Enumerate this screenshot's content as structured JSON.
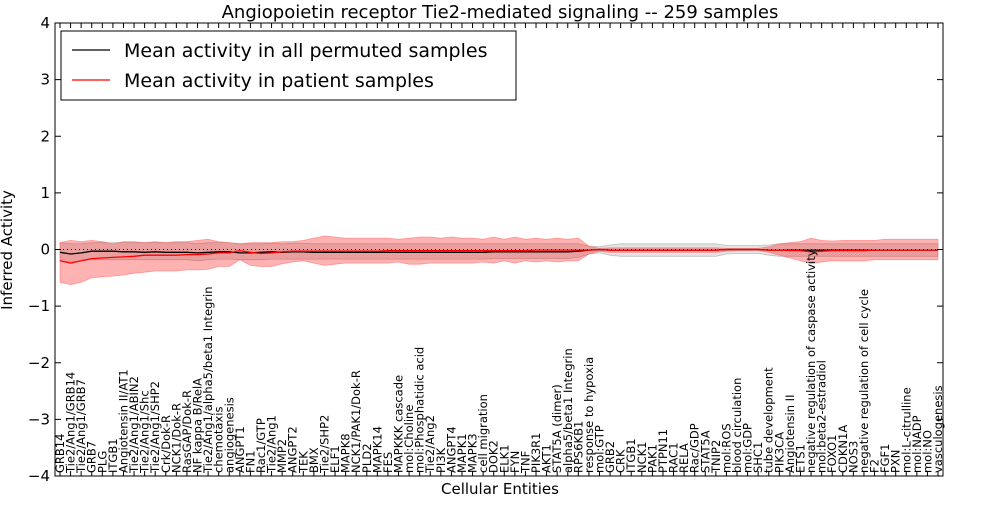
{
  "chart_data": {
    "type": "line",
    "title": "Angiopoietin receptor Tie2-mediated signaling -- 259 samples",
    "xlabel": "Cellular Entities",
    "ylabel": "Inferred Activity",
    "ylim": [
      -4,
      4
    ],
    "yticks": [
      -4,
      -3,
      -2,
      -1,
      0,
      1,
      2,
      3,
      4
    ],
    "ytick_labels": [
      "−4",
      "−3",
      "−2",
      "−1",
      "0",
      "1",
      "2",
      "3",
      "4"
    ],
    "legend_position": "top-left",
    "reference_line": 0,
    "categories": [
      "GRB14",
      "Tie2/Ang1/GRB14",
      "Tie2/Ang1/GRB7",
      "GRB7",
      "PLG",
      "ITGB1",
      "Angiotensin II/AT1",
      "Tie2/Ang1/ABIN2",
      "Tie2/Ang1/Shc",
      "Tie2/Ang1/SHP2",
      "Crk/Dok-R",
      "NCK1/Dok-R",
      "RasGAP/Dok-R",
      "NF kappa B/RelA",
      "Tie2/Ang1/alpha5/beta1 Integrin",
      "chemotaxis",
      "angiogenesis",
      "ANGPT1",
      "FN1",
      "Rac1/GTP",
      "Tie2/Ang1",
      "MMP2",
      "ANGPT2",
      "TEK",
      "BMX",
      "Tie2/SHP2",
      "ELF1",
      "MAPK8",
      "NCK1/PAK1/Dok-R",
      "PLD2",
      "MAPK14",
      "FES",
      "MAPKKK cascade",
      "mol:Choline",
      "mol:Phosphatidic acid",
      "Tie2/Ang2",
      "PI3K",
      "ANGPT4",
      "MAPK1",
      "MAPK3",
      "cell migration",
      "DOK2",
      "ELK1",
      "FYN",
      "TNF",
      "PIK3R1",
      "AKT1",
      "STAT5A (dimer)",
      "alpha5/beta1 Integrin",
      "RPS6KB1",
      "response to hypoxia",
      "mol:GTP",
      "GRB2",
      "CRK",
      "ITGB1",
      "NCK1",
      "PAK1",
      "PTPN11",
      "RAC1",
      "RELA",
      "Rac/GDP",
      "STAT5A",
      "TNIP2",
      "mol:ROS",
      "blood circulation",
      "mol:GDP",
      "SHC1",
      "tube development",
      "PIK3CA",
      "Angiotensin II",
      "ETS1",
      "negative regulation of caspase activity",
      "mol:beta2-estradiol",
      "FOXO1",
      "CDKN1A",
      "NOS3",
      "negative regulation of cell cycle",
      "F2",
      "FGF1",
      "PXN",
      "mol:L-citrulline",
      "mol:NADP",
      "mol:NO",
      "vasculogenesis"
    ],
    "series": [
      {
        "name": "Mean activity in all permuted samples",
        "color": "#000000",
        "values": [
          -0.05,
          -0.08,
          -0.06,
          -0.03,
          -0.03,
          -0.03,
          -0.04,
          -0.04,
          -0.05,
          -0.04,
          -0.05,
          -0.05,
          -0.05,
          -0.06,
          -0.05,
          -0.04,
          -0.04,
          -0.06,
          -0.06,
          -0.05,
          -0.04,
          -0.05,
          -0.04,
          -0.04,
          -0.05,
          -0.05,
          -0.05,
          -0.05,
          -0.05,
          -0.05,
          -0.05,
          -0.05,
          -0.05,
          -0.05,
          -0.05,
          -0.05,
          -0.05,
          -0.05,
          -0.05,
          -0.05,
          -0.05,
          -0.04,
          -0.04,
          -0.04,
          -0.04,
          -0.04,
          -0.04,
          -0.04,
          -0.04,
          -0.03,
          -0.01,
          0.0,
          -0.01,
          -0.01,
          -0.01,
          -0.01,
          -0.01,
          -0.01,
          -0.01,
          -0.01,
          -0.01,
          -0.01,
          -0.01,
          0.0,
          0.0,
          0.0,
          0.0,
          -0.01,
          -0.01,
          -0.01,
          -0.01,
          -0.01,
          -0.01,
          -0.01,
          -0.01,
          -0.01,
          -0.01,
          -0.01,
          -0.01,
          -0.01,
          -0.01,
          -0.01,
          -0.01,
          -0.01
        ],
        "band_lower": [
          -0.2,
          -0.22,
          -0.2,
          -0.18,
          -0.18,
          -0.18,
          -0.18,
          -0.18,
          -0.18,
          -0.18,
          -0.18,
          -0.18,
          -0.18,
          -0.2,
          -0.18,
          -0.17,
          -0.17,
          -0.18,
          -0.18,
          -0.18,
          -0.17,
          -0.17,
          -0.17,
          -0.17,
          -0.17,
          -0.17,
          -0.17,
          -0.17,
          -0.17,
          -0.17,
          -0.17,
          -0.17,
          -0.17,
          -0.17,
          -0.17,
          -0.17,
          -0.17,
          -0.17,
          -0.17,
          -0.17,
          -0.17,
          -0.16,
          -0.16,
          -0.16,
          -0.16,
          -0.16,
          -0.16,
          -0.16,
          -0.16,
          -0.14,
          -0.08,
          -0.06,
          -0.1,
          -0.12,
          -0.12,
          -0.12,
          -0.12,
          -0.12,
          -0.12,
          -0.12,
          -0.12,
          -0.12,
          -0.12,
          -0.08,
          -0.07,
          -0.07,
          -0.07,
          -0.1,
          -0.12,
          -0.12,
          -0.12,
          -0.12,
          -0.12,
          -0.12,
          -0.12,
          -0.12,
          -0.12,
          -0.12,
          -0.12,
          -0.12,
          -0.12,
          -0.12,
          -0.12,
          -0.12
        ],
        "band_upper": [
          0.12,
          0.1,
          0.1,
          0.12,
          0.12,
          0.12,
          0.12,
          0.12,
          0.12,
          0.12,
          0.12,
          0.12,
          0.12,
          0.1,
          0.12,
          0.12,
          0.12,
          0.1,
          0.1,
          0.1,
          0.11,
          0.1,
          0.11,
          0.11,
          0.1,
          0.1,
          0.1,
          0.1,
          0.1,
          0.1,
          0.1,
          0.1,
          0.1,
          0.1,
          0.1,
          0.1,
          0.1,
          0.1,
          0.1,
          0.1,
          0.1,
          0.1,
          0.1,
          0.1,
          0.1,
          0.1,
          0.1,
          0.1,
          0.1,
          0.1,
          0.06,
          0.05,
          0.08,
          0.1,
          0.1,
          0.1,
          0.1,
          0.1,
          0.1,
          0.1,
          0.1,
          0.1,
          0.1,
          0.07,
          0.07,
          0.07,
          0.07,
          0.08,
          0.1,
          0.1,
          0.1,
          0.1,
          0.1,
          0.1,
          0.1,
          0.1,
          0.1,
          0.1,
          0.1,
          0.1,
          0.1,
          0.1,
          0.1,
          0.1
        ]
      },
      {
        "name": "Mean activity in patient samples",
        "color": "#ff0000",
        "values": [
          -0.2,
          -0.24,
          -0.2,
          -0.16,
          -0.15,
          -0.14,
          -0.13,
          -0.12,
          -0.1,
          -0.1,
          -0.1,
          -0.1,
          -0.09,
          -0.09,
          -0.08,
          -0.06,
          -0.06,
          -0.02,
          -0.05,
          -0.07,
          -0.06,
          -0.04,
          -0.03,
          -0.03,
          -0.03,
          -0.03,
          -0.03,
          -0.03,
          -0.03,
          -0.03,
          -0.03,
          -0.02,
          -0.02,
          -0.02,
          -0.02,
          -0.02,
          -0.02,
          -0.02,
          -0.02,
          -0.02,
          -0.02,
          -0.02,
          -0.02,
          -0.02,
          -0.02,
          -0.01,
          -0.01,
          -0.01,
          -0.01,
          -0.01,
          -0.01,
          0.0,
          -0.01,
          -0.01,
          -0.01,
          -0.01,
          -0.01,
          -0.01,
          -0.01,
          -0.01,
          -0.01,
          -0.01,
          -0.01,
          0.0,
          0.0,
          0.0,
          0.0,
          -0.01,
          -0.01,
          -0.02,
          -0.02,
          -0.04,
          -0.03,
          -0.02,
          -0.02,
          -0.02,
          -0.02,
          -0.01,
          -0.01,
          -0.01,
          -0.01,
          -0.01,
          -0.01,
          -0.01
        ],
        "band_lower": [
          -0.58,
          -0.62,
          -0.58,
          -0.5,
          -0.48,
          -0.47,
          -0.45,
          -0.42,
          -0.4,
          -0.38,
          -0.38,
          -0.38,
          -0.36,
          -0.36,
          -0.35,
          -0.3,
          -0.3,
          -0.18,
          -0.28,
          -0.3,
          -0.3,
          -0.25,
          -0.22,
          -0.2,
          -0.24,
          -0.28,
          -0.26,
          -0.24,
          -0.24,
          -0.24,
          -0.24,
          -0.24,
          -0.22,
          -0.26,
          -0.26,
          -0.24,
          -0.24,
          -0.24,
          -0.24,
          -0.24,
          -0.22,
          -0.24,
          -0.2,
          -0.24,
          -0.2,
          -0.22,
          -0.2,
          -0.22,
          -0.2,
          -0.2,
          -0.08,
          -0.03,
          -0.05,
          -0.05,
          -0.05,
          -0.05,
          -0.05,
          -0.05,
          -0.05,
          -0.05,
          -0.05,
          -0.05,
          -0.05,
          -0.03,
          -0.02,
          -0.02,
          -0.02,
          -0.05,
          -0.1,
          -0.15,
          -0.2,
          -0.25,
          -0.22,
          -0.2,
          -0.2,
          -0.2,
          -0.2,
          -0.18,
          -0.18,
          -0.18,
          -0.18,
          -0.18,
          -0.18,
          -0.18
        ],
        "band_upper": [
          0.12,
          0.16,
          0.14,
          0.16,
          0.14,
          0.1,
          0.14,
          0.14,
          0.12,
          0.14,
          0.12,
          0.14,
          0.14,
          0.16,
          0.18,
          0.14,
          0.12,
          0.1,
          0.12,
          0.12,
          0.12,
          0.14,
          0.14,
          0.16,
          0.2,
          0.24,
          0.22,
          0.2,
          0.2,
          0.2,
          0.2,
          0.2,
          0.18,
          0.2,
          0.22,
          0.22,
          0.2,
          0.22,
          0.2,
          0.2,
          0.18,
          0.22,
          0.18,
          0.22,
          0.18,
          0.2,
          0.18,
          0.2,
          0.18,
          0.2,
          0.06,
          0.02,
          0.03,
          0.03,
          0.03,
          0.03,
          0.03,
          0.03,
          0.03,
          0.03,
          0.03,
          0.03,
          0.03,
          0.02,
          0.02,
          0.02,
          0.02,
          0.05,
          0.1,
          0.12,
          0.14,
          0.2,
          0.16,
          0.15,
          0.16,
          0.16,
          0.16,
          0.16,
          0.18,
          0.18,
          0.18,
          0.18,
          0.18,
          0.18
        ]
      }
    ]
  }
}
